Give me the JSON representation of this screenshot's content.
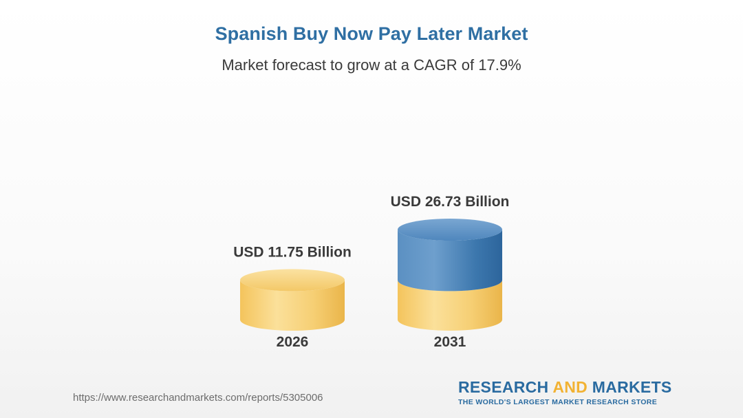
{
  "header": {
    "title": "Spanish Buy Now Pay Later Market",
    "subtitle": "Market forecast to grow at a CAGR of 17.9%"
  },
  "chart_data": {
    "type": "bar",
    "style": "3d-cylinder",
    "categories": [
      "2026",
      "2031"
    ],
    "values": [
      11.75,
      26.73
    ],
    "value_labels": [
      "USD 11.75 Billion",
      "USD 26.73 Billion"
    ],
    "unit": "USD Billion",
    "title": "Spanish Buy Now Pay Later Market",
    "subtitle": "Market forecast to grow at a CAGR of 17.9%",
    "grid": false,
    "colors": {
      "base": "#f6cd6b",
      "growth": "#3d7eb4"
    }
  },
  "footer": {
    "url": "https://www.researchandmarkets.com/reports/5305006",
    "logo_word1": "RESEARCH ",
    "logo_word2": "AND",
    "logo_word3": " MARKETS",
    "logo_tagline": "THE WORLD'S LARGEST MARKET RESEARCH STORE"
  }
}
